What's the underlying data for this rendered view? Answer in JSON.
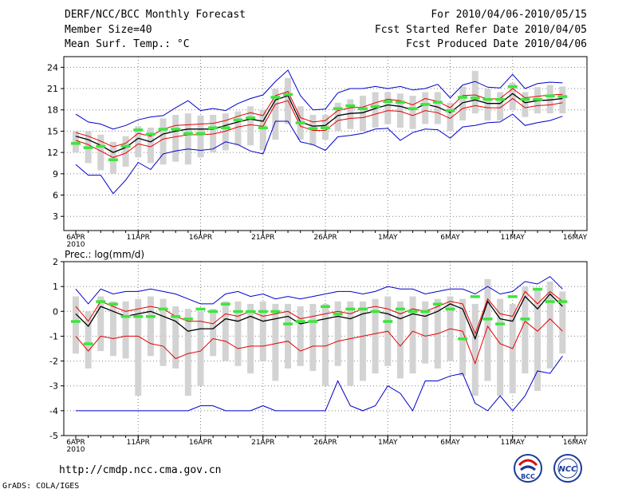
{
  "header": {
    "title": "DERF/NCC/BCC Monthly Forecast",
    "member_size": "Member Size=40",
    "variable": "Mean Surf. Temp.: °C",
    "period": "For 2010/04/06-2010/05/15",
    "started": "Fcst Started Refer Date 2010/04/05",
    "produced": "Fcst Produced Date 2010/04/06"
  },
  "footer": {
    "url": "http://cmdp.ncc.cma.gov.cn",
    "grads": "GrADS: COLA/IGES",
    "logo_bcc": "BCC",
    "logo_ncc": "NCC"
  },
  "colors": {
    "frame": "#000000",
    "grid": "#808080",
    "box": "#d3d3d3",
    "obs": "#3ce63c",
    "mean": "#000000",
    "quartile": "#e60000",
    "envelope": "#0000cc"
  },
  "chart_data": [
    {
      "type": "line",
      "name": "temperature",
      "title": "",
      "ylim": [
        1,
        25.5
      ],
      "yticks": [
        3,
        6,
        9,
        12,
        15,
        18,
        21,
        24
      ],
      "xticks": [
        {
          "day": 0,
          "label": "6APR",
          "sub": "2010"
        },
        {
          "day": 5,
          "label": "11APR"
        },
        {
          "day": 10,
          "label": "16APR"
        },
        {
          "day": 15,
          "label": "21APR"
        },
        {
          "day": 20,
          "label": "26APR"
        },
        {
          "day": 25,
          "label": "1MAY"
        },
        {
          "day": 30,
          "label": "6MAY"
        },
        {
          "day": 35,
          "label": "11MAY"
        },
        {
          "day": 40,
          "label": "16MAY"
        }
      ],
      "mean": [
        14.3,
        13.8,
        13.0,
        12.0,
        12.7,
        14.0,
        13.5,
        14.6,
        15.0,
        15.3,
        15.3,
        15.3,
        15.8,
        16.3,
        16.7,
        16.4,
        19.4,
        20.0,
        16.3,
        15.7,
        15.8,
        17.2,
        17.5,
        17.6,
        18.2,
        18.7,
        18.5,
        18.0,
        18.8,
        18.4,
        17.6,
        19.0,
        19.4,
        18.9,
        18.9,
        20.3,
        19.0,
        19.3,
        19.4,
        19.6
      ],
      "upper": [
        14.8,
        14.3,
        13.6,
        12.8,
        13.3,
        14.7,
        14.3,
        15.3,
        15.8,
        15.9,
        16.0,
        16.1,
        16.5,
        17.1,
        17.6,
        17.2,
        20.0,
        20.6,
        16.9,
        16.3,
        16.5,
        17.9,
        18.3,
        18.4,
        19.0,
        19.5,
        19.3,
        18.7,
        19.6,
        19.2,
        18.3,
        20.0,
        20.1,
        19.5,
        19.6,
        21.0,
        19.7,
        19.9,
        20.1,
        20.2
      ],
      "lower": [
        13.7,
        13.1,
        12.2,
        11.3,
        11.9,
        13.2,
        12.8,
        13.9,
        14.2,
        14.5,
        14.5,
        14.6,
        15.0,
        15.6,
        15.9,
        15.7,
        18.8,
        19.3,
        15.7,
        15.1,
        15.1,
        16.5,
        16.8,
        16.9,
        17.4,
        17.9,
        17.8,
        17.2,
        17.9,
        17.6,
        16.8,
        18.2,
        18.6,
        18.3,
        18.3,
        19.6,
        18.3,
        18.6,
        18.7,
        19.0
      ],
      "max": [
        17.4,
        16.3,
        16.0,
        15.3,
        15.8,
        16.6,
        17.0,
        17.2,
        18.3,
        19.3,
        17.9,
        18.2,
        17.9,
        18.9,
        19.6,
        20.1,
        22.0,
        23.6,
        20.0,
        18.0,
        18.1,
        20.4,
        21.0,
        21.0,
        21.3,
        21.0,
        21.3,
        20.8,
        21.0,
        21.6,
        19.7,
        21.5,
        22.0,
        21.2,
        21.1,
        23.0,
        21.0,
        21.7,
        21.9,
        21.8
      ],
      "min": [
        10.3,
        8.8,
        8.8,
        6.2,
        8.1,
        10.6,
        9.6,
        11.8,
        12.2,
        12.5,
        12.3,
        12.5,
        13.5,
        13.1,
        12.2,
        11.8,
        16.4,
        16.4,
        13.5,
        13.1,
        12.3,
        14.2,
        14.4,
        14.7,
        15.3,
        15.4,
        13.7,
        14.8,
        15.3,
        15.2,
        14.0,
        15.6,
        15.8,
        16.2,
        16.3,
        17.4,
        15.8,
        16.2,
        16.5,
        17.1
      ],
      "box_top": [
        15.0,
        15.0,
        14.5,
        13.5,
        14.3,
        15.7,
        15.5,
        16.8,
        17.3,
        17.5,
        17.2,
        17.3,
        17.5,
        17.8,
        18.5,
        18.0,
        21.0,
        22.5,
        18.5,
        17.3,
        17.3,
        19.0,
        19.5,
        20.0,
        20.5,
        20.5,
        20.3,
        20.0,
        20.5,
        20.5,
        19.0,
        21.3,
        23.5,
        21.0,
        20.5,
        21.8,
        20.5,
        21.2,
        21.5,
        21.3
      ],
      "box_bottom": [
        12.0,
        10.5,
        9.5,
        9.0,
        10.0,
        11.3,
        10.5,
        10.3,
        10.7,
        10.3,
        11.3,
        12.0,
        12.3,
        13.0,
        13.0,
        12.3,
        13.8,
        16.0,
        13.8,
        13.0,
        13.8,
        15.0,
        15.3,
        15.0,
        15.5,
        16.0,
        15.5,
        15.3,
        16.0,
        16.0,
        15.0,
        16.5,
        17.5,
        16.5,
        16.5,
        18.0,
        17.0,
        17.5,
        17.5,
        17.5
      ],
      "observed": [
        13.3,
        12.7,
        12.9,
        11.0,
        12.9,
        15.2,
        14.6,
        15.3,
        15.3,
        14.7,
        14.7,
        15.5,
        15.5,
        16.6,
        16.9,
        15.5,
        19.8,
        20.2,
        16.2,
        15.4,
        15.5,
        18.2,
        18.6,
        18.2,
        18.5,
        19.2,
        19.1,
        18.2,
        18.8,
        19.1,
        17.9,
        19.8,
        19.7,
        19.5,
        19.5,
        21.3,
        19.5,
        19.5,
        20.0,
        19.9
      ]
    },
    {
      "type": "line",
      "name": "precipitation",
      "title": "Prec.: log(mm/d)",
      "ylim": [
        -5,
        2
      ],
      "yticks": [
        -5,
        -4,
        -3,
        -2,
        -1,
        0,
        1,
        2
      ],
      "xticks": [
        {
          "day": 0,
          "label": "6APR",
          "sub": "2010"
        },
        {
          "day": 5,
          "label": "11APR"
        },
        {
          "day": 10,
          "label": "16APR"
        },
        {
          "day": 15,
          "label": "21APR"
        },
        {
          "day": 20,
          "label": "26APR"
        },
        {
          "day": 25,
          "label": "1MAY"
        },
        {
          "day": 30,
          "label": "6MAY"
        },
        {
          "day": 35,
          "label": "11MAY"
        },
        {
          "day": 40,
          "label": "16MAY"
        }
      ],
      "mean": [
        -0.1,
        -0.6,
        0.2,
        0.0,
        -0.2,
        -0.1,
        0.0,
        -0.2,
        -0.4,
        -0.8,
        -0.7,
        -0.7,
        -0.3,
        -0.4,
        -0.2,
        -0.4,
        -0.3,
        -0.2,
        -0.5,
        -0.4,
        -0.3,
        -0.2,
        -0.3,
        -0.1,
        0.0,
        -0.1,
        -0.3,
        -0.1,
        -0.2,
        0.0,
        0.3,
        0.1,
        -1.1,
        0.4,
        -0.3,
        -0.4,
        0.6,
        0.1,
        0.7,
        0.2
      ],
      "upper": [
        0.2,
        -0.4,
        0.4,
        0.2,
        0.0,
        0.1,
        0.2,
        0.1,
        -0.2,
        -0.4,
        -0.4,
        -0.5,
        -0.1,
        -0.2,
        0.0,
        -0.2,
        -0.1,
        0.0,
        -0.3,
        -0.2,
        -0.1,
        0.0,
        -0.1,
        0.1,
        0.2,
        0.1,
        -0.1,
        0.1,
        0.0,
        0.2,
        0.4,
        0.3,
        -0.9,
        0.5,
        -0.1,
        -0.2,
        0.8,
        0.3,
        0.8,
        0.4
      ],
      "lower": [
        -1.0,
        -1.6,
        -1.0,
        -1.1,
        -1.0,
        -1.0,
        -1.3,
        -1.4,
        -1.9,
        -1.7,
        -1.6,
        -1.1,
        -1.2,
        -1.5,
        -1.4,
        -1.4,
        -1.3,
        -1.2,
        -1.6,
        -1.4,
        -1.4,
        -1.2,
        -1.1,
        -1.0,
        -0.9,
        -0.8,
        -1.4,
        -0.8,
        -1.0,
        -0.9,
        -0.7,
        -0.8,
        -2.1,
        -0.6,
        -1.3,
        -1.5,
        -0.4,
        -0.8,
        -0.3,
        -0.8
      ],
      "max": [
        0.9,
        0.3,
        0.9,
        0.7,
        0.8,
        0.8,
        0.9,
        0.8,
        0.7,
        0.5,
        0.3,
        0.3,
        0.7,
        0.8,
        0.6,
        0.7,
        0.5,
        0.6,
        0.5,
        0.6,
        0.7,
        0.8,
        0.8,
        0.7,
        0.8,
        1.0,
        0.9,
        0.9,
        0.7,
        0.8,
        0.9,
        0.9,
        0.7,
        1.0,
        0.7,
        0.8,
        1.2,
        1.1,
        1.4,
        0.9
      ],
      "min": [
        -4.0,
        -4.0,
        -4.0,
        -4.0,
        -4.0,
        -4.0,
        -4.0,
        -4.0,
        -4.0,
        -4.0,
        -3.8,
        -3.8,
        -4.0,
        -4.0,
        -4.0,
        -3.8,
        -4.0,
        -4.0,
        -4.0,
        -4.0,
        -4.0,
        -2.8,
        -3.8,
        -4.0,
        -3.8,
        -3.0,
        -3.3,
        -4.0,
        -2.8,
        -2.8,
        -2.6,
        -2.5,
        -3.7,
        -4.0,
        -3.4,
        -4.0,
        -3.4,
        -2.4,
        -2.5,
        -1.8
      ],
      "box_top": [
        0.6,
        0.0,
        0.6,
        0.4,
        0.4,
        0.5,
        0.6,
        0.5,
        0.2,
        0.1,
        0.0,
        0.1,
        0.4,
        0.4,
        0.3,
        0.4,
        0.3,
        0.3,
        0.2,
        0.3,
        0.3,
        0.4,
        0.4,
        0.4,
        0.5,
        0.6,
        0.4,
        0.6,
        0.4,
        0.5,
        0.6,
        0.5,
        0.3,
        1.3,
        0.5,
        0.3,
        1.0,
        0.9,
        1.2,
        0.8
      ],
      "box_bottom": [
        -1.7,
        -2.3,
        -1.6,
        -1.8,
        -1.9,
        -3.4,
        -1.8,
        -2.2,
        -2.3,
        -3.4,
        -3.0,
        -1.8,
        -2.0,
        -2.2,
        -2.5,
        -2.0,
        -2.8,
        -2.3,
        -2.2,
        -2.4,
        -3.0,
        -2.2,
        -3.0,
        -2.8,
        -2.5,
        -2.2,
        -2.7,
        -2.5,
        -2.1,
        -2.3,
        -2.0,
        -2.6,
        -3.4,
        -2.8,
        -3.4,
        -3.3,
        -2.5,
        -3.2,
        -2.3,
        -1.7
      ],
      "observed": [
        -0.4,
        -1.3,
        0.4,
        0.3,
        -0.2,
        -0.2,
        -0.2,
        0.1,
        -0.2,
        -0.3,
        0.1,
        0.0,
        0.3,
        0.0,
        0.0,
        0.0,
        0.0,
        -0.5,
        -0.4,
        -0.4,
        0.2,
        -0.1,
        0.1,
        0.1,
        0.0,
        -0.4,
        0.1,
        0.0,
        0.0,
        0.3,
        0.1,
        -1.1,
        0.6,
        -0.3,
        -0.5,
        0.6,
        -0.3,
        0.9,
        0.4,
        0.4
      ]
    }
  ]
}
